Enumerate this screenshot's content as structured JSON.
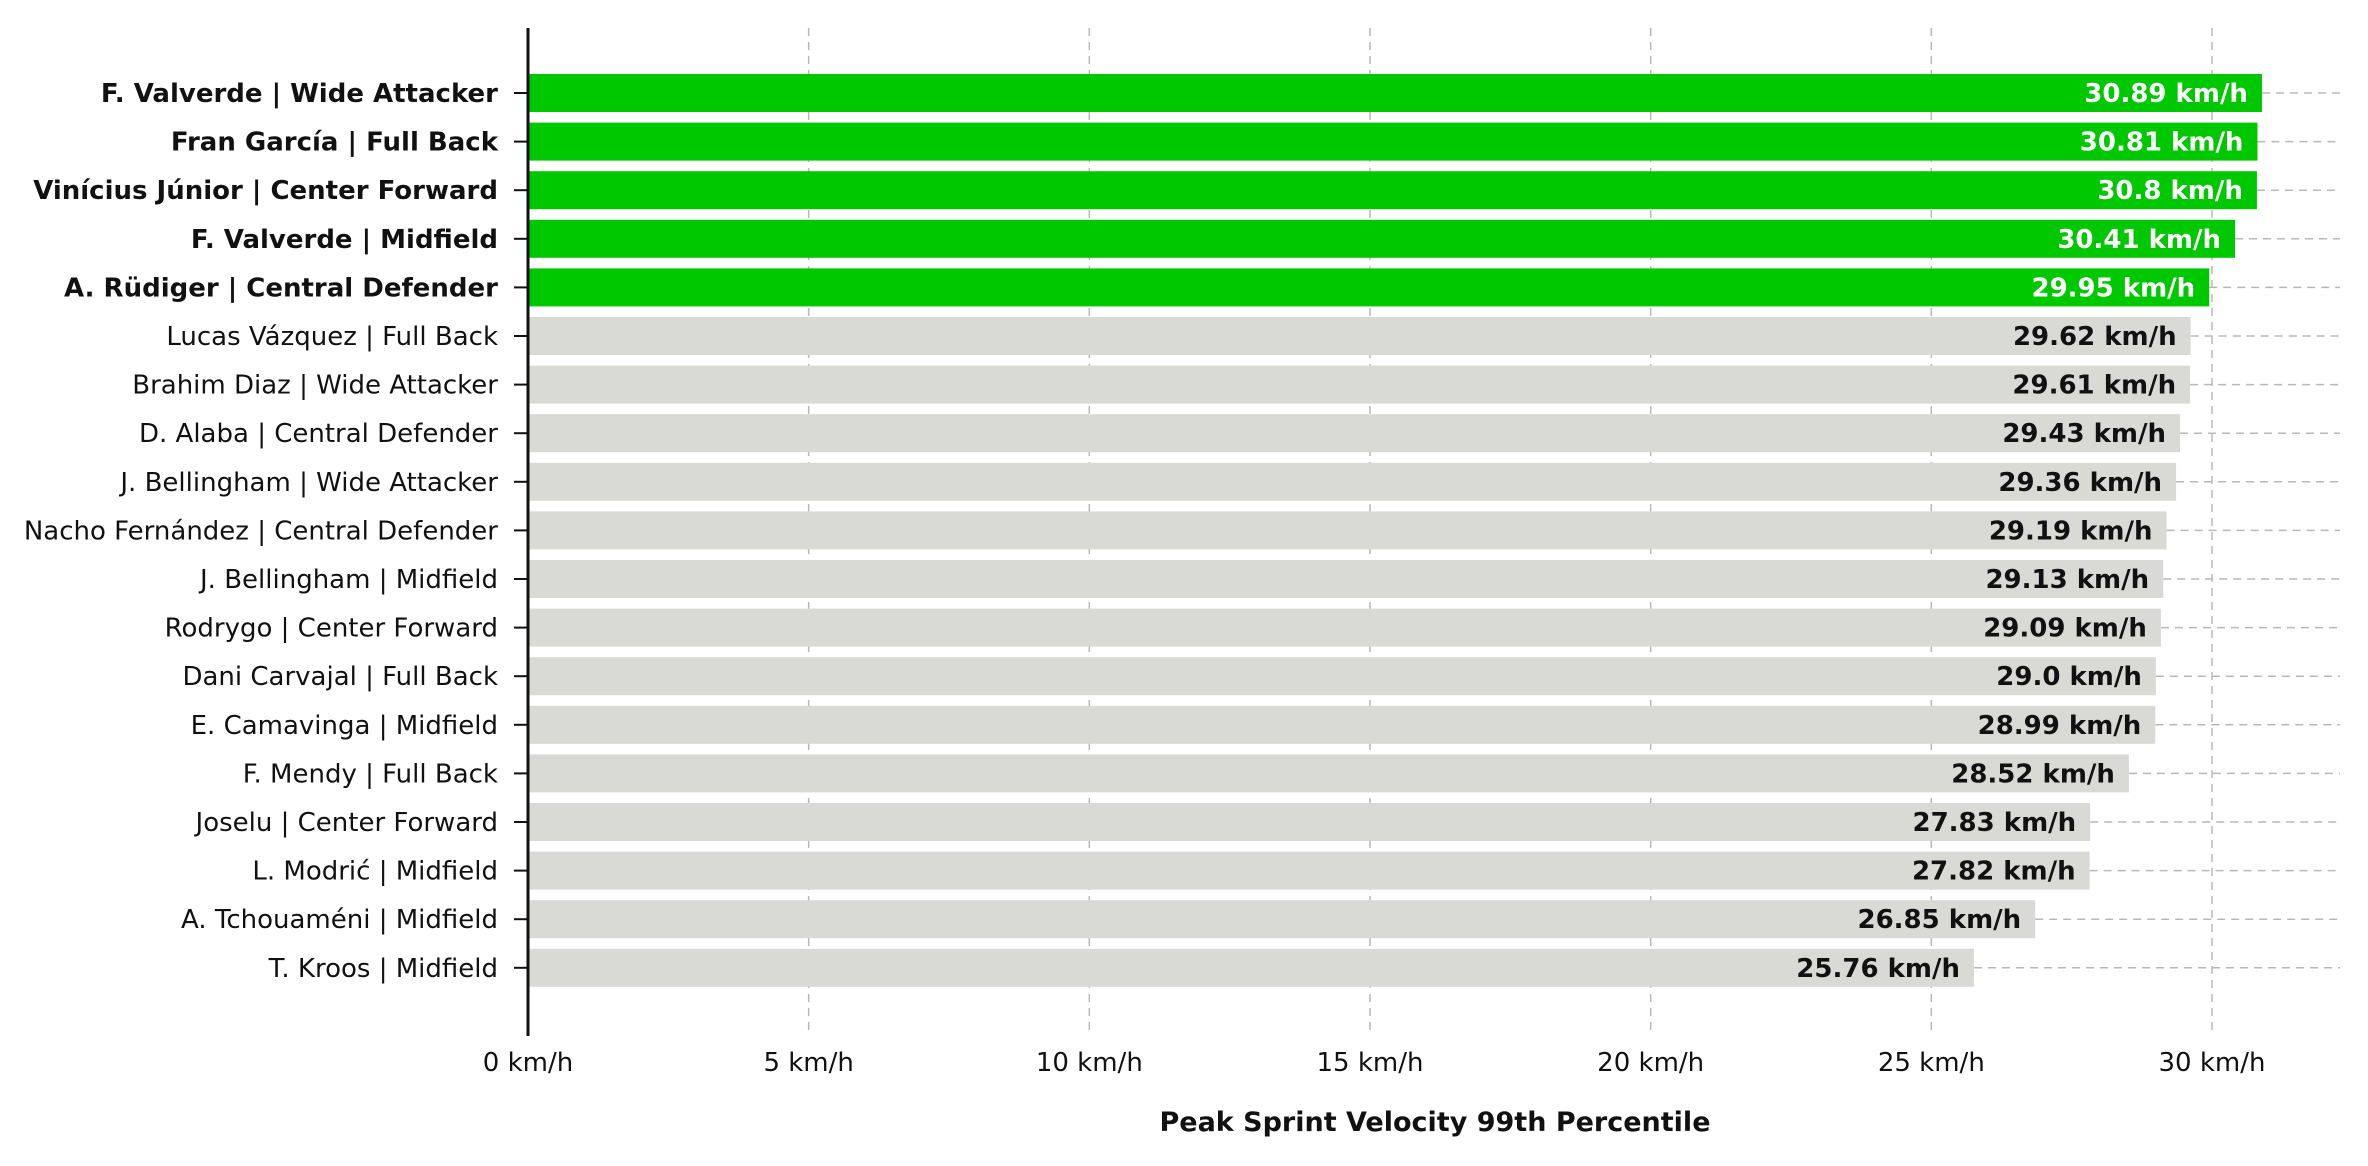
{
  "chart_data": {
    "type": "bar",
    "orientation": "horizontal",
    "xlabel": "Peak Sprint Velocity 99th Percentile",
    "ylabel": "",
    "xlim": [
      0,
      32
    ],
    "x_ticks": [
      "0 km/h",
      "5 km/h",
      "10 km/h",
      "15 km/h",
      "20 km/h",
      "25 km/h",
      "30 km/h"
    ],
    "x_tick_values": [
      0,
      5,
      10,
      15,
      20,
      25,
      30
    ],
    "grid": "x dashed",
    "unit_suffix": " km/h",
    "highlight_color": "#00c800",
    "base_color": "#d9d9d6",
    "categories": [
      "F. Valverde | Wide Attacker",
      "Fran García | Full Back",
      "Vinícius Júnior | Center Forward",
      "F. Valverde | Midfield",
      "A. Rüdiger | Central Defender",
      "Lucas Vázquez | Full Back",
      "Brahim Diaz | Wide Attacker",
      "D. Alaba | Central Defender",
      "J. Bellingham | Wide Attacker",
      "Nacho Fernández | Central Defender",
      "J. Bellingham | Midfield",
      "Rodrygo | Center Forward",
      "Dani Carvajal | Full Back",
      "E. Camavinga | Midfield",
      "F. Mendy | Full Back",
      "Joselu | Center Forward",
      "L. Modrić | Midfield",
      "A. Tchouaméni | Midfield",
      "T. Kroos | Midfield"
    ],
    "values": [
      30.89,
      30.81,
      30.8,
      30.41,
      29.95,
      29.62,
      29.61,
      29.43,
      29.36,
      29.19,
      29.13,
      29.09,
      29.0,
      28.99,
      28.52,
      27.83,
      27.82,
      26.85,
      25.76
    ],
    "value_labels": [
      "30.89 km/h",
      "30.81 km/h",
      "30.8 km/h",
      "30.41 km/h",
      "29.95 km/h",
      "29.62 km/h",
      "29.61 km/h",
      "29.43 km/h",
      "29.36 km/h",
      "29.19 km/h",
      "29.13 km/h",
      "29.09 km/h",
      "29.0 km/h",
      "28.99 km/h",
      "28.52 km/h",
      "27.83 km/h",
      "27.82 km/h",
      "26.85 km/h",
      "25.76 km/h"
    ],
    "highlighted": [
      true,
      true,
      true,
      true,
      true,
      false,
      false,
      false,
      false,
      false,
      false,
      false,
      false,
      false,
      false,
      false,
      false,
      false,
      false
    ]
  }
}
